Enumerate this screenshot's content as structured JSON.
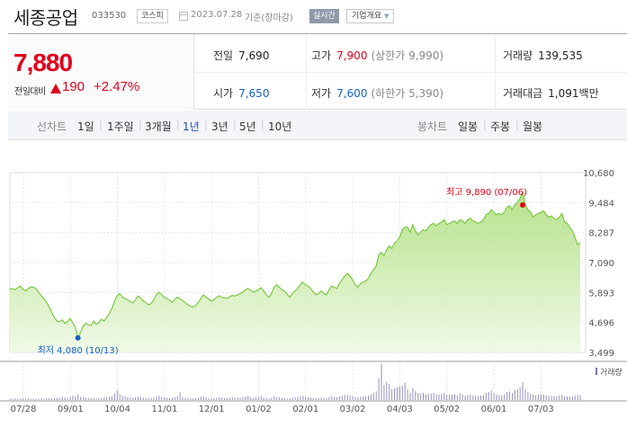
{
  "header": {
    "company": "세종공업",
    "code": "033530",
    "market": "코스피",
    "date": "2023.07.28",
    "basis": "기준(장마감)",
    "realtime": "실시간",
    "overview": "기업개요",
    "overview_arrow": "▼"
  },
  "quote": {
    "price": "7,880",
    "change_label": "전일대비",
    "change": "190",
    "change_pct": "+2.47%",
    "prev_close_label": "전일",
    "prev_close": "7,690",
    "high_label": "고가",
    "high": "7,900",
    "upper_limit": "(상한가 9,990)",
    "volume_label": "거래량",
    "volume": "139,535",
    "open_label": "시가",
    "open": "7,650",
    "low_label": "저가",
    "low": "7,600",
    "lower_limit": "(하한가 5,390)",
    "amount_label": "거래대금",
    "amount": "1,091",
    "amount_unit": "백만"
  },
  "periods": {
    "line_label": "선차트",
    "line_options": [
      "1일",
      "1주일",
      "3개월",
      "1년",
      "3년",
      "5년",
      "10년"
    ],
    "active": "1년",
    "candle_label": "봉차트",
    "candle_options": [
      "일봉",
      "주봉",
      "월봉"
    ]
  },
  "colors": {
    "up": "#e0001b",
    "down": "#1560c8",
    "line": "#7cc943",
    "active_tab": "#1f4fa8"
  },
  "chart_data": {
    "type": "area",
    "y_ticks": [
      "10,680",
      "9,484",
      "8,287",
      "7,090",
      "5,893",
      "4,696",
      "3,499"
    ],
    "y_tick_values": [
      10680,
      9484,
      8287,
      7090,
      5893,
      4696,
      3499
    ],
    "ylim": [
      3499,
      10680
    ],
    "x_ticks": [
      "07/28",
      "09/01",
      "10/04",
      "11/01",
      "12/01",
      "01/02",
      "02/01",
      "03/02",
      "04/03",
      "05/02",
      "06/01",
      "07/03"
    ],
    "max_label": "최고 9,890 (07/06)",
    "min_label": "최저 4,080 (10/13)",
    "volume_legend": "거래량",
    "grid": true,
    "prices": [
      6020,
      6050,
      6000,
      6080,
      6150,
      6020,
      5960,
      6050,
      6120,
      6100,
      6040,
      5900,
      5760,
      5650,
      5500,
      5320,
      5100,
      4900,
      4750,
      4720,
      4800,
      4650,
      4720,
      4850,
      4690,
      4500,
      4080,
      4300,
      4550,
      4650,
      4600,
      4580,
      4750,
      4620,
      4700,
      4820,
      4750,
      4900,
      5050,
      5250,
      5550,
      5760,
      5850,
      5700,
      5650,
      5600,
      5520,
      5480,
      5600,
      5750,
      5680,
      5550,
      5480,
      5400,
      5450,
      5600,
      5820,
      5900,
      5800,
      5700,
      5650,
      5580,
      5500,
      5620,
      5700,
      5650,
      5560,
      5500,
      5400,
      5350,
      5300,
      5380,
      5500,
      5650,
      5800,
      5700,
      5620,
      5550,
      5600,
      5700,
      5760,
      5700,
      5680,
      5650,
      5720,
      5780,
      5750,
      5800,
      5850,
      5900,
      6000,
      6050,
      5980,
      5900,
      5950,
      6000,
      6080,
      5950,
      5800,
      5700,
      5850,
      6100,
      6200,
      6100,
      6000,
      5950,
      5800,
      5700,
      5850,
      5950,
      6050,
      6200,
      6300,
      6200,
      6150,
      6050,
      5900,
      5800,
      5850,
      5950,
      5850,
      5800,
      6000,
      6150,
      6100,
      6050,
      6250,
      6400,
      6550,
      6650,
      6550,
      6400,
      6200,
      6100,
      6250,
      6300,
      6350,
      6450,
      6650,
      6800,
      6950,
      7400,
      7500,
      7350,
      7600,
      7750,
      7650,
      7850,
      7950,
      8100,
      8400,
      8500,
      8500,
      8300,
      8600,
      8350,
      8200,
      8300,
      8400,
      8350,
      8500,
      8600,
      8650,
      8550,
      8650,
      8700,
      8800,
      8600,
      8650,
      8700,
      8750,
      8650,
      8800,
      8750,
      8650,
      8800,
      8850,
      8750,
      8700,
      8650,
      8700,
      8800,
      9000,
      9050,
      9200,
      9100,
      9000,
      9050,
      9000,
      9100,
      9300,
      9350,
      9200,
      9400,
      9500,
      9650,
      9890,
      9400,
      9200,
      9100,
      8900,
      9000,
      9050,
      9100,
      9150,
      9000,
      8900,
      8950,
      8850,
      8800,
      8900,
      9050,
      8700,
      8650,
      8500,
      8350,
      8100,
      7800,
      7880
    ],
    "volumes": [
      0.04,
      0.03,
      0.05,
      0.04,
      0.03,
      0.04,
      0.03,
      0.05,
      0.03,
      0.04,
      0.04,
      0.03,
      0.05,
      0.04,
      0.06,
      0.05,
      0.04,
      0.05,
      0.06,
      0.05,
      0.08,
      0.07,
      0.06,
      0.09,
      0.12,
      0.1,
      0.15,
      0.08,
      0.07,
      0.06,
      0.05,
      0.05,
      0.06,
      0.05,
      0.06,
      0.05,
      0.07,
      0.08,
      0.09,
      0.1,
      0.18,
      0.27,
      0.16,
      0.12,
      0.1,
      0.08,
      0.07,
      0.06,
      0.07,
      0.09,
      0.08,
      0.07,
      0.06,
      0.05,
      0.05,
      0.06,
      0.1,
      0.12,
      0.09,
      0.07,
      0.06,
      0.05,
      0.05,
      0.08,
      0.1,
      0.22,
      0.08,
      0.06,
      0.05,
      0.05,
      0.04,
      0.05,
      0.06,
      0.09,
      0.1,
      0.07,
      0.06,
      0.05,
      0.05,
      0.06,
      0.07,
      0.06,
      0.05,
      0.05,
      0.06,
      0.08,
      0.06,
      0.07,
      0.07,
      0.09,
      0.1,
      0.12,
      0.08,
      0.06,
      0.07,
      0.08,
      0.1,
      0.07,
      0.06,
      0.05,
      0.06,
      0.11,
      0.08,
      0.07,
      0.05,
      0.05,
      0.04,
      0.05,
      0.06,
      0.07,
      0.08,
      0.1,
      0.12,
      0.09,
      0.08,
      0.07,
      0.06,
      0.05,
      0.06,
      0.07,
      0.06,
      0.05,
      0.08,
      0.1,
      0.09,
      0.07,
      0.1,
      0.12,
      0.14,
      0.15,
      0.12,
      0.1,
      0.08,
      0.07,
      0.09,
      0.1,
      0.11,
      0.12,
      0.16,
      0.2,
      0.24,
      0.6,
      1.0,
      0.42,
      0.5,
      0.45,
      0.3,
      0.32,
      0.35,
      0.38,
      0.4,
      0.48,
      0.3,
      0.2,
      0.34,
      0.25,
      0.2,
      0.18,
      0.2,
      0.15,
      0.17,
      0.18,
      0.2,
      0.16,
      0.15,
      0.18,
      0.2,
      0.15,
      0.14,
      0.15,
      0.16,
      0.13,
      0.18,
      0.15,
      0.12,
      0.14,
      0.15,
      0.13,
      0.12,
      0.11,
      0.12,
      0.14,
      0.2,
      0.22,
      0.26,
      0.2,
      0.16,
      0.14,
      0.13,
      0.15,
      0.22,
      0.24,
      0.2,
      0.28,
      0.3,
      0.35,
      0.5,
      0.3,
      0.22,
      0.18,
      0.15,
      0.14,
      0.15,
      0.16,
      0.15,
      0.13,
      0.12,
      0.12,
      0.11,
      0.1,
      0.12,
      0.14,
      0.1,
      0.1,
      0.09,
      0.1,
      0.12,
      0.15,
      0.13
    ]
  }
}
